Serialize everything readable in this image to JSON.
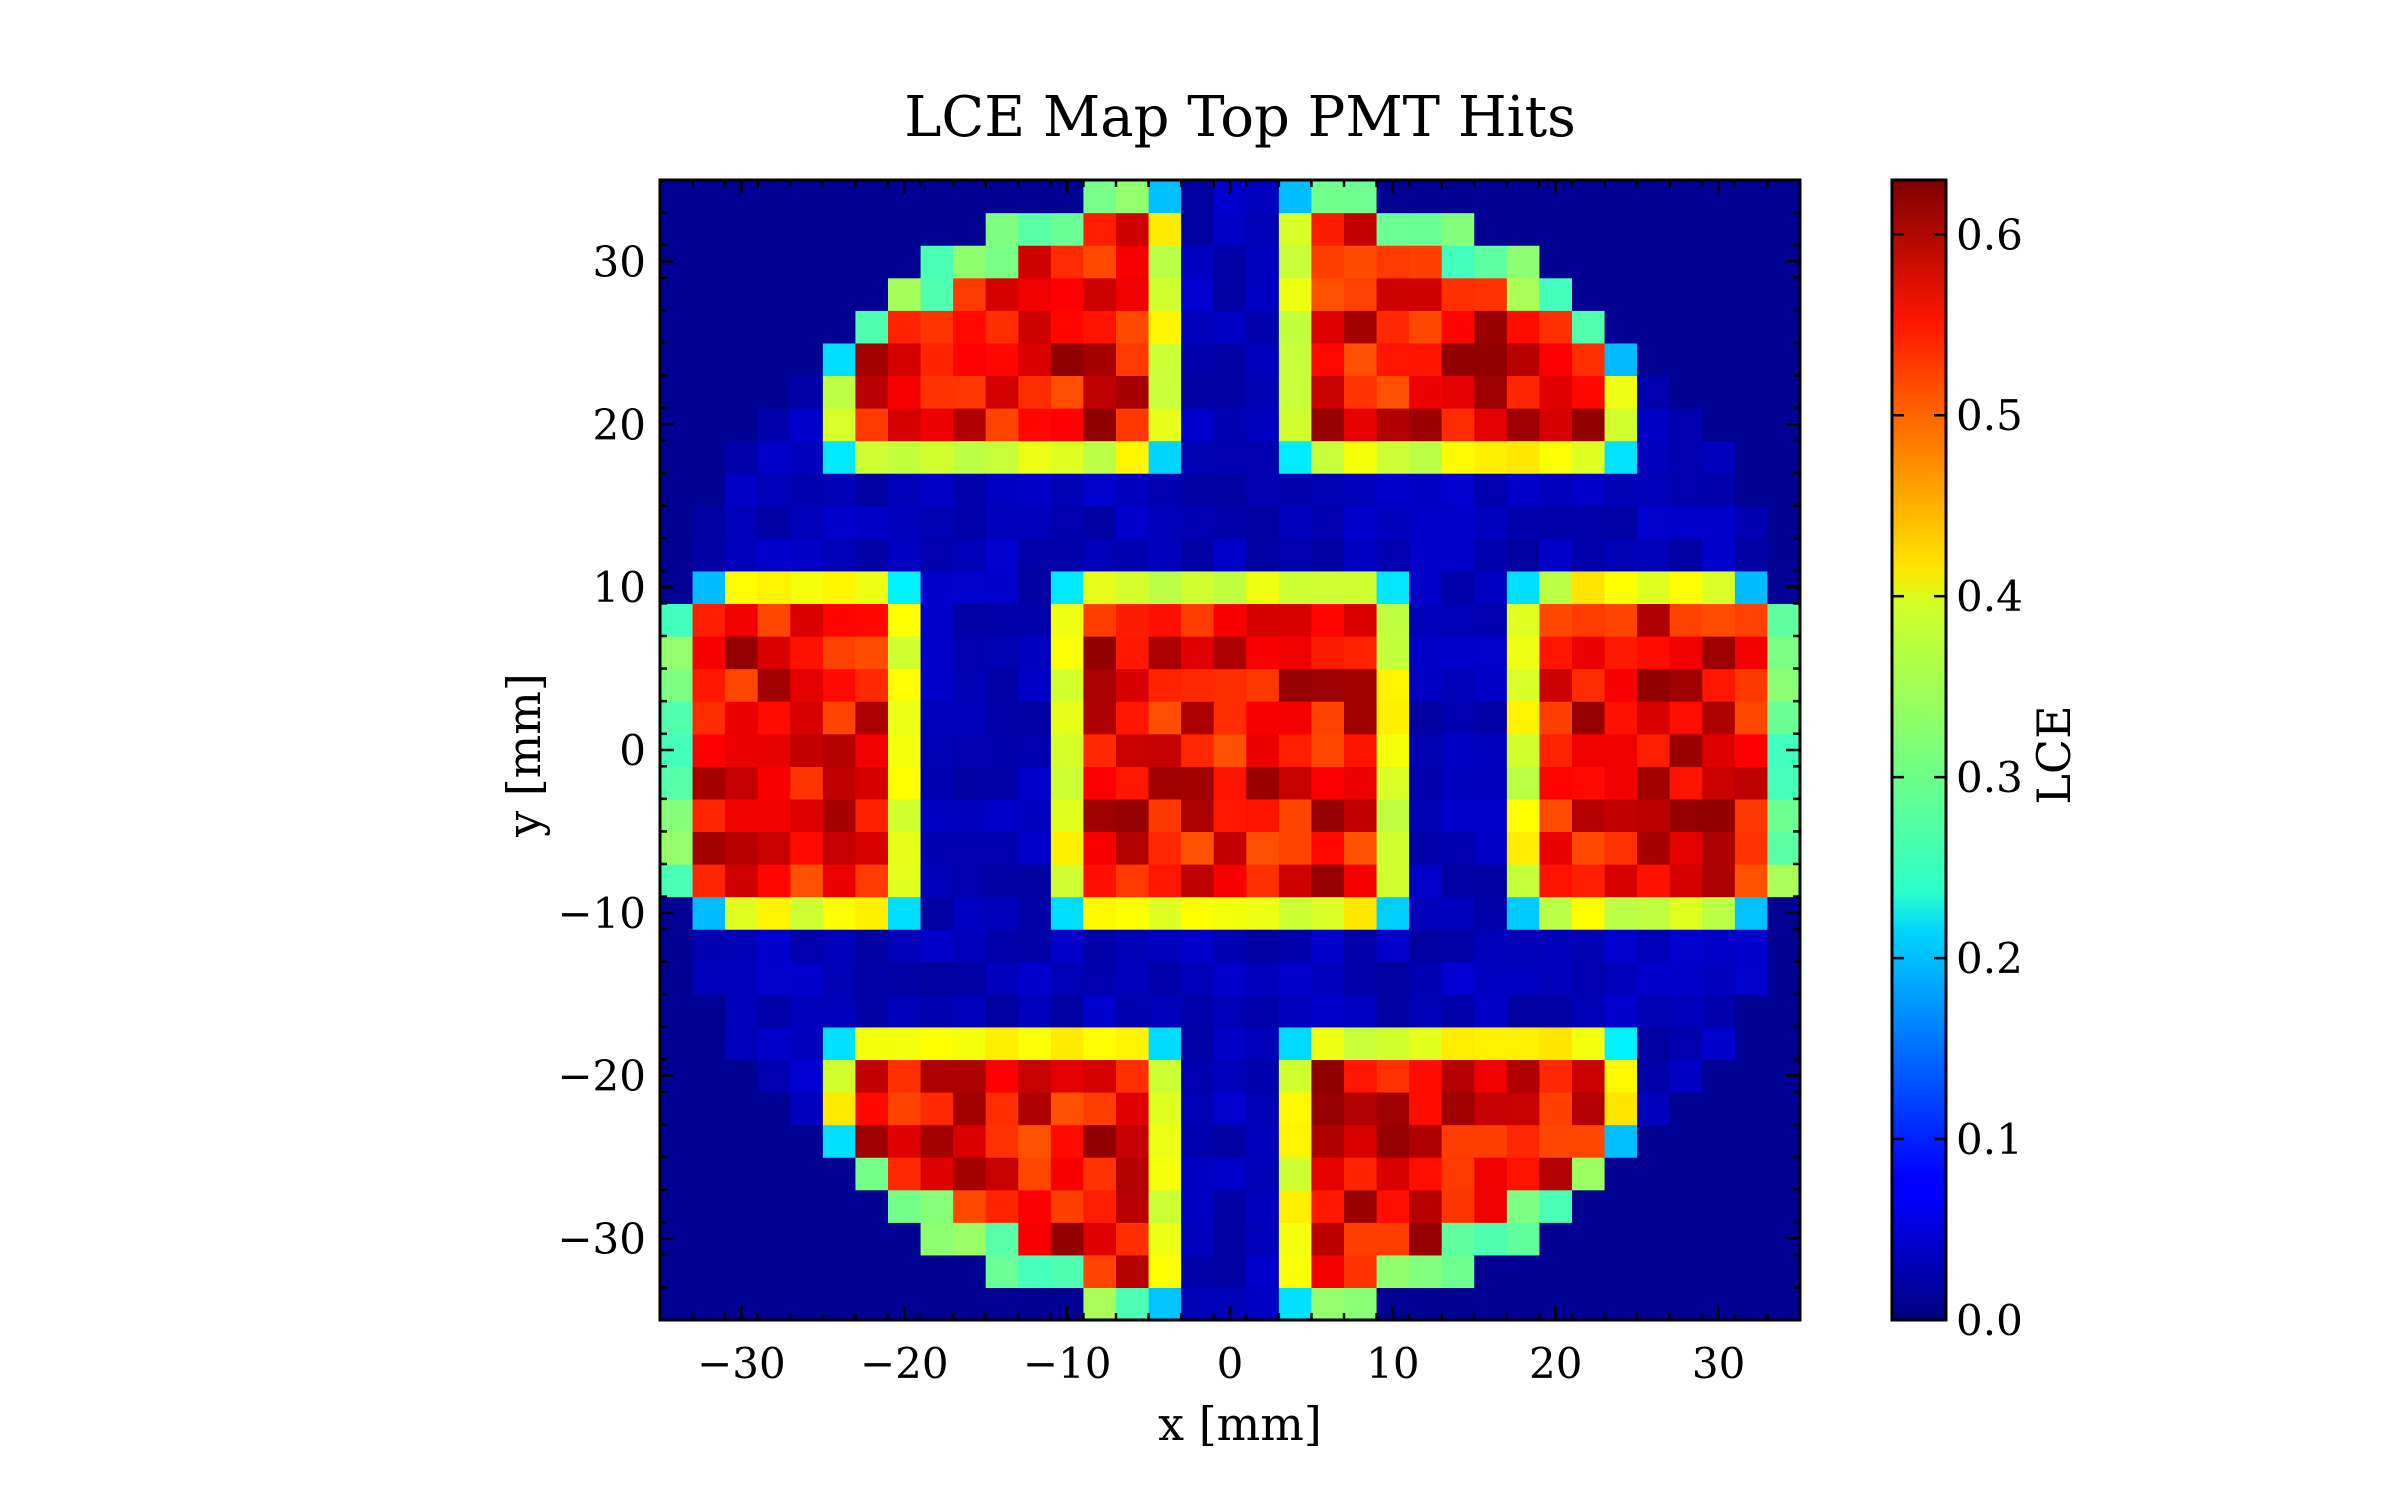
{
  "chart_data": {
    "type": "heatmap",
    "title": "LCE Map Top PMT Hits",
    "xlabel": "x [mm]",
    "ylabel": "y [mm]",
    "colorbar_label": "LCE",
    "colormap": "jet",
    "xlim": [
      -35,
      35
    ],
    "ylim": [
      -35,
      35
    ],
    "x_ticks": [
      -30,
      -20,
      -10,
      0,
      10,
      20,
      30
    ],
    "y_ticks": [
      -30,
      -20,
      -10,
      0,
      10,
      20,
      30
    ],
    "x_tick_labels": [
      "−30",
      "−20",
      "−10",
      "0",
      "10",
      "20",
      "30"
    ],
    "y_tick_labels": [
      "−30",
      "−20",
      "−10",
      "0",
      "10",
      "20",
      "30"
    ],
    "bins": 35,
    "bin_width": 2,
    "clim": [
      0,
      0.63
    ],
    "colorbar_ticks": [
      0.0,
      0.1,
      0.2,
      0.3,
      0.4,
      0.5,
      0.6
    ],
    "colorbar_tick_labels": [
      "0.0",
      "0.1",
      "0.2",
      "0.3",
      "0.4",
      "0.5",
      "0.6"
    ],
    "grid": false,
    "background_lce": 0.02,
    "circle_radius": 35,
    "value_summary": {
      "pmt_interior_lce": 0.56,
      "pmt_edge_lce": 0.38,
      "pmt_corner_lce": 0.2,
      "gap_lce": 0.03
    },
    "pmt_regions": [
      {
        "x": [
          -35,
          -19
        ],
        "y": [
          -11,
          11
        ]
      },
      {
        "x": [
          -11,
          11
        ],
        "y": [
          -11,
          11
        ]
      },
      {
        "x": [
          17,
          35
        ],
        "y": [
          -11,
          11
        ]
      },
      {
        "x": [
          -25,
          -3
        ],
        "y": [
          17,
          35
        ]
      },
      {
        "x": [
          3,
          25
        ],
        "y": [
          17,
          35
        ]
      },
      {
        "x": [
          -25,
          -3
        ],
        "y": [
          -35,
          -17
        ]
      },
      {
        "x": [
          3,
          25
        ],
        "y": [
          -35,
          -17
        ]
      }
    ]
  }
}
